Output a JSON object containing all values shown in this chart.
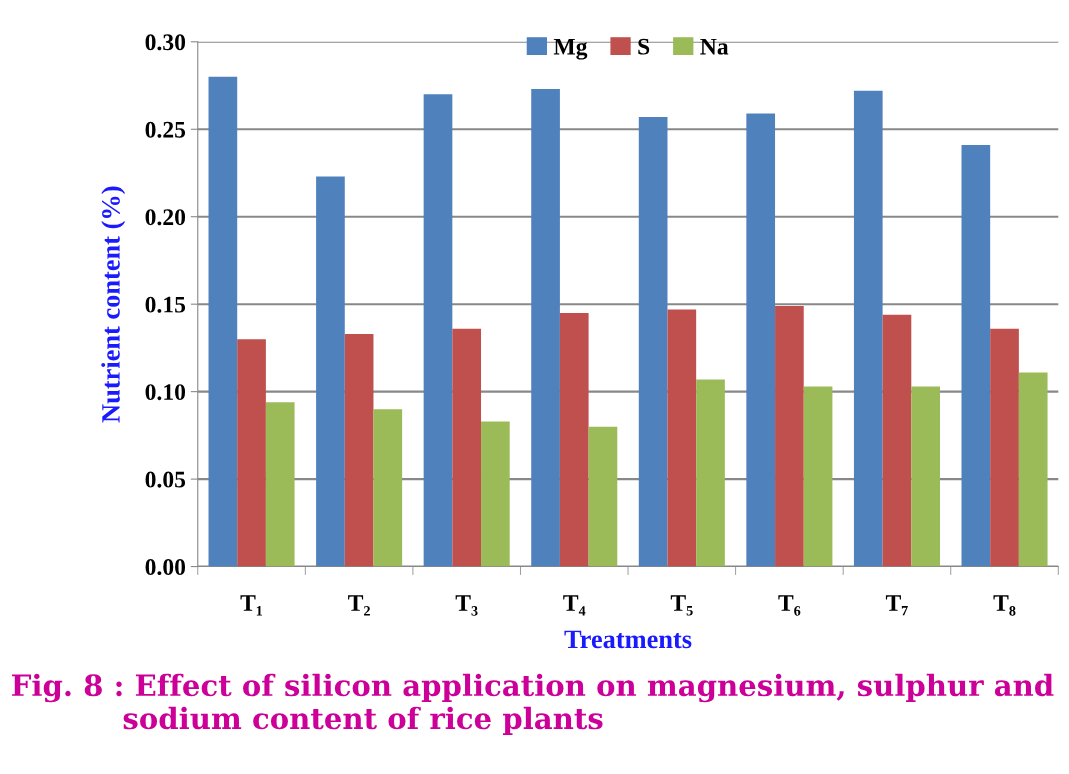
{
  "chart_data": {
    "type": "bar",
    "categories": [
      "T₁",
      "T₂",
      "T₃",
      "T₄",
      "T₅",
      "T₆",
      "T₇",
      "T₈"
    ],
    "series": [
      {
        "name": "Mg",
        "color": "#4f81bd",
        "values": [
          0.28,
          0.223,
          0.27,
          0.273,
          0.257,
          0.259,
          0.272,
          0.241
        ]
      },
      {
        "name": "S",
        "color": "#c0504d",
        "values": [
          0.13,
          0.133,
          0.136,
          0.145,
          0.147,
          0.149,
          0.144,
          0.136
        ]
      },
      {
        "name": "Na",
        "color": "#9bbb59",
        "values": [
          0.094,
          0.09,
          0.083,
          0.08,
          0.107,
          0.103,
          0.103,
          0.111
        ]
      }
    ],
    "xlabel": "Treatments",
    "ylabel": "Nutrient content (%)",
    "ylim": [
      0,
      0.3
    ],
    "yticks": [
      {
        "value": 0,
        "label": "0.00"
      },
      {
        "value": 0.05,
        "label": "0.05"
      },
      {
        "value": 0.1,
        "label": "0.10"
      },
      {
        "value": 0.15,
        "label": "0.15"
      },
      {
        "value": 0.2,
        "label": "0.20"
      },
      {
        "value": 0.25,
        "label": "0.25"
      },
      {
        "value": 0.3,
        "label": "0.30"
      }
    ],
    "grid": "y",
    "legend": "top",
    "annotations": [
      "Fig. 8 : Effect of silicon application on magnesium, sulphur and\n           sodium content of rice plants"
    ]
  }
}
